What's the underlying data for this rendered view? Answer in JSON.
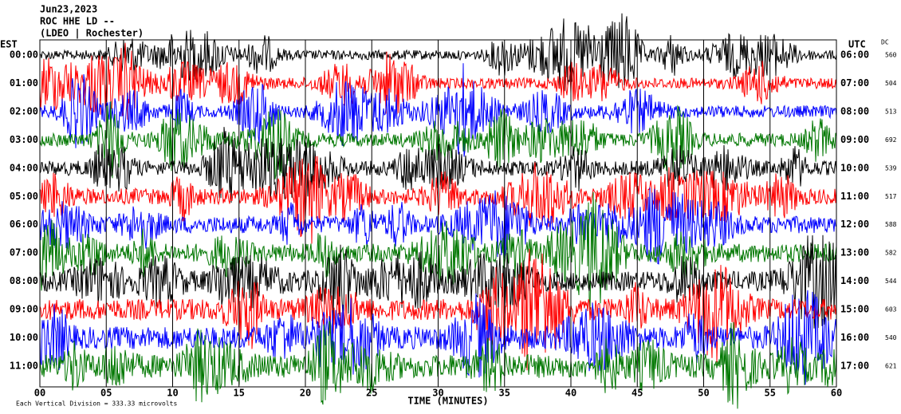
{
  "header": {
    "date": "Jun23,2023",
    "station": "ROC HHE LD --",
    "network": "(LDEO | Rochester)"
  },
  "left_axis": {
    "label": "EST",
    "rows": [
      "00:00",
      "01:00",
      "02:00",
      "03:00",
      "04:00",
      "05:00",
      "06:00",
      "07:00",
      "08:00",
      "09:00",
      "10:00",
      "11:00"
    ]
  },
  "right_axis": {
    "label": "UTC",
    "rows": [
      "06:00",
      "07:00",
      "08:00",
      "09:00",
      "10:00",
      "11:00",
      "12:00",
      "13:00",
      "14:00",
      "15:00",
      "16:00",
      "17:00"
    ]
  },
  "dc": {
    "label": "DC",
    "values": [
      560,
      504,
      513,
      692,
      539,
      517,
      588,
      582,
      544,
      603,
      540,
      621
    ]
  },
  "x_axis": {
    "label": "TIME (MINUTES)",
    "ticks": [
      "00",
      "05",
      "10",
      "15",
      "20",
      "25",
      "30",
      "35",
      "40",
      "45",
      "50",
      "55",
      "60"
    ]
  },
  "footer": "Each Vertical Division =  333.33 microvolts",
  "colors": [
    "#000000",
    "#ff0000",
    "#0000ff",
    "#007700"
  ]
}
